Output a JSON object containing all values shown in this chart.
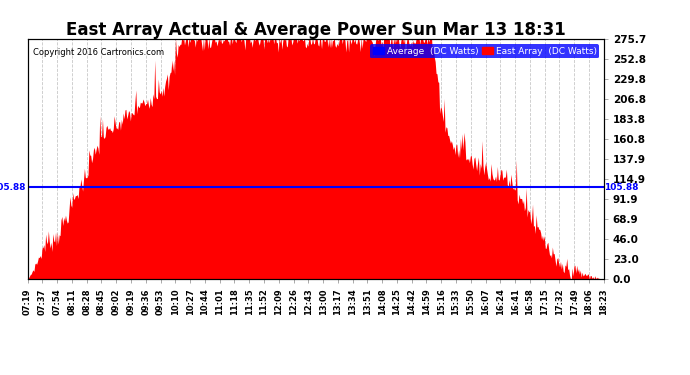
{
  "title": "East Array Actual & Average Power Sun Mar 13 18:31",
  "copyright": "Copyright 2016 Cartronics.com",
  "avg_value": 105.88,
  "y_max": 275.7,
  "y_ticks": [
    0.0,
    23.0,
    46.0,
    68.9,
    91.9,
    114.9,
    137.9,
    160.8,
    183.8,
    206.8,
    229.8,
    252.8,
    275.7
  ],
  "background_color": "#ffffff",
  "fill_color": "#ff0000",
  "avg_line_color": "#0000ff",
  "grid_color": "#c8c8c8",
  "title_fontsize": 12,
  "x_labels": [
    "07:19",
    "07:37",
    "07:54",
    "08:11",
    "08:28",
    "08:45",
    "09:02",
    "09:19",
    "09:36",
    "09:53",
    "10:10",
    "10:27",
    "10:44",
    "11:01",
    "11:18",
    "11:35",
    "11:52",
    "12:09",
    "12:26",
    "12:43",
    "13:00",
    "13:17",
    "13:34",
    "13:51",
    "14:08",
    "14:25",
    "14:42",
    "14:59",
    "15:16",
    "15:33",
    "15:50",
    "16:07",
    "16:24",
    "16:41",
    "16:58",
    "17:15",
    "17:32",
    "17:49",
    "18:06",
    "18:23"
  ],
  "legend_avg_label": "Average  (DC Watts)",
  "legend_east_label": "East Array  (DC Watts)"
}
